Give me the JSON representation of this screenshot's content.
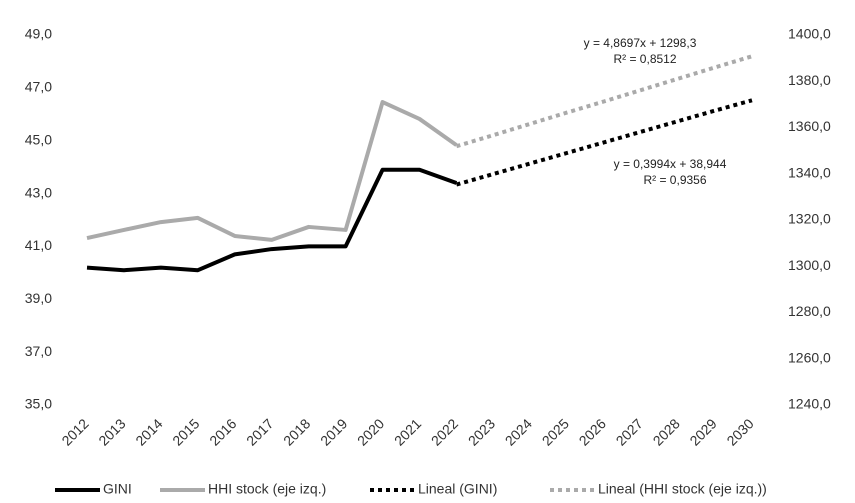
{
  "chart_data": {
    "type": "line",
    "categories": [
      "2012",
      "2013",
      "2014",
      "2015",
      "2016",
      "2017",
      "2018",
      "2019",
      "2020",
      "2021",
      "2022",
      "2023",
      "2024",
      "2025",
      "2026",
      "2027",
      "2028",
      "2029",
      "2030"
    ],
    "series": [
      {
        "name": "GINI",
        "color": "#000000",
        "axis": "y",
        "values": [
          40.2,
          40.1,
          40.2,
          40.1,
          40.7,
          40.9,
          41.0,
          41.0,
          43.9,
          43.9,
          43.4,
          null,
          null,
          null,
          null,
          null,
          null,
          null,
          null
        ]
      },
      {
        "name": "HHI stock (eje izq.)",
        "color": "#aaaaaa",
        "axis": "y2",
        "values": [
          1312.2,
          1315.7,
          1319.1,
          1320.9,
          1313.1,
          1311.4,
          1317.0,
          1315.7,
          1371.0,
          1363.7,
          1352.4,
          null,
          null,
          null,
          null,
          null,
          null,
          null,
          null
        ]
      },
      {
        "name": "Lineal (GINI)",
        "color": "#000000",
        "axis": "y",
        "dashed": true,
        "values": [
          null,
          null,
          null,
          null,
          null,
          null,
          null,
          null,
          null,
          null,
          43.34,
          43.74,
          44.14,
          44.54,
          44.94,
          45.34,
          45.74,
          46.14,
          46.53
        ]
      },
      {
        "name": "Lineal (HHI stock (eje izq.))",
        "color": "#aaaaaa",
        "axis": "y2",
        "dashed": true,
        "values": [
          null,
          null,
          null,
          null,
          null,
          null,
          null,
          null,
          null,
          null,
          1351.9,
          1356.7,
          1361.6,
          1366.5,
          1371.3,
          1376.2,
          1381.1,
          1386.0,
          1390.8
        ]
      }
    ],
    "ylim": [
      35,
      49
    ],
    "yticks": [
      {
        "value": 35,
        "label": "35,0"
      },
      {
        "value": 37,
        "label": "37,0"
      },
      {
        "value": 39,
        "label": "39,0"
      },
      {
        "value": 41,
        "label": "41,0"
      },
      {
        "value": 43,
        "label": "43,0"
      },
      {
        "value": 45,
        "label": "45,0"
      },
      {
        "value": 47,
        "label": "47,0"
      },
      {
        "value": 49,
        "label": "49,0"
      }
    ],
    "y2lim": [
      1240,
      1400
    ],
    "y2ticks": [
      {
        "value": 1240,
        "label": "1240,0"
      },
      {
        "value": 1260,
        "label": "1260,0"
      },
      {
        "value": 1280,
        "label": "1280,0"
      },
      {
        "value": 1300,
        "label": "1300,0"
      },
      {
        "value": 1320,
        "label": "1320,0"
      },
      {
        "value": 1340,
        "label": "1340,0"
      },
      {
        "value": 1360,
        "label": "1360,0"
      },
      {
        "value": 1380,
        "label": "1380,0"
      },
      {
        "value": 1400,
        "label": "1400,0"
      }
    ],
    "annotations": [
      "y = 4,8697x + 1298,3",
      "R² = 0,8512",
      "y = 0,3994x + 38,944",
      "R² = 0,9356"
    ],
    "legend": "bottom"
  }
}
